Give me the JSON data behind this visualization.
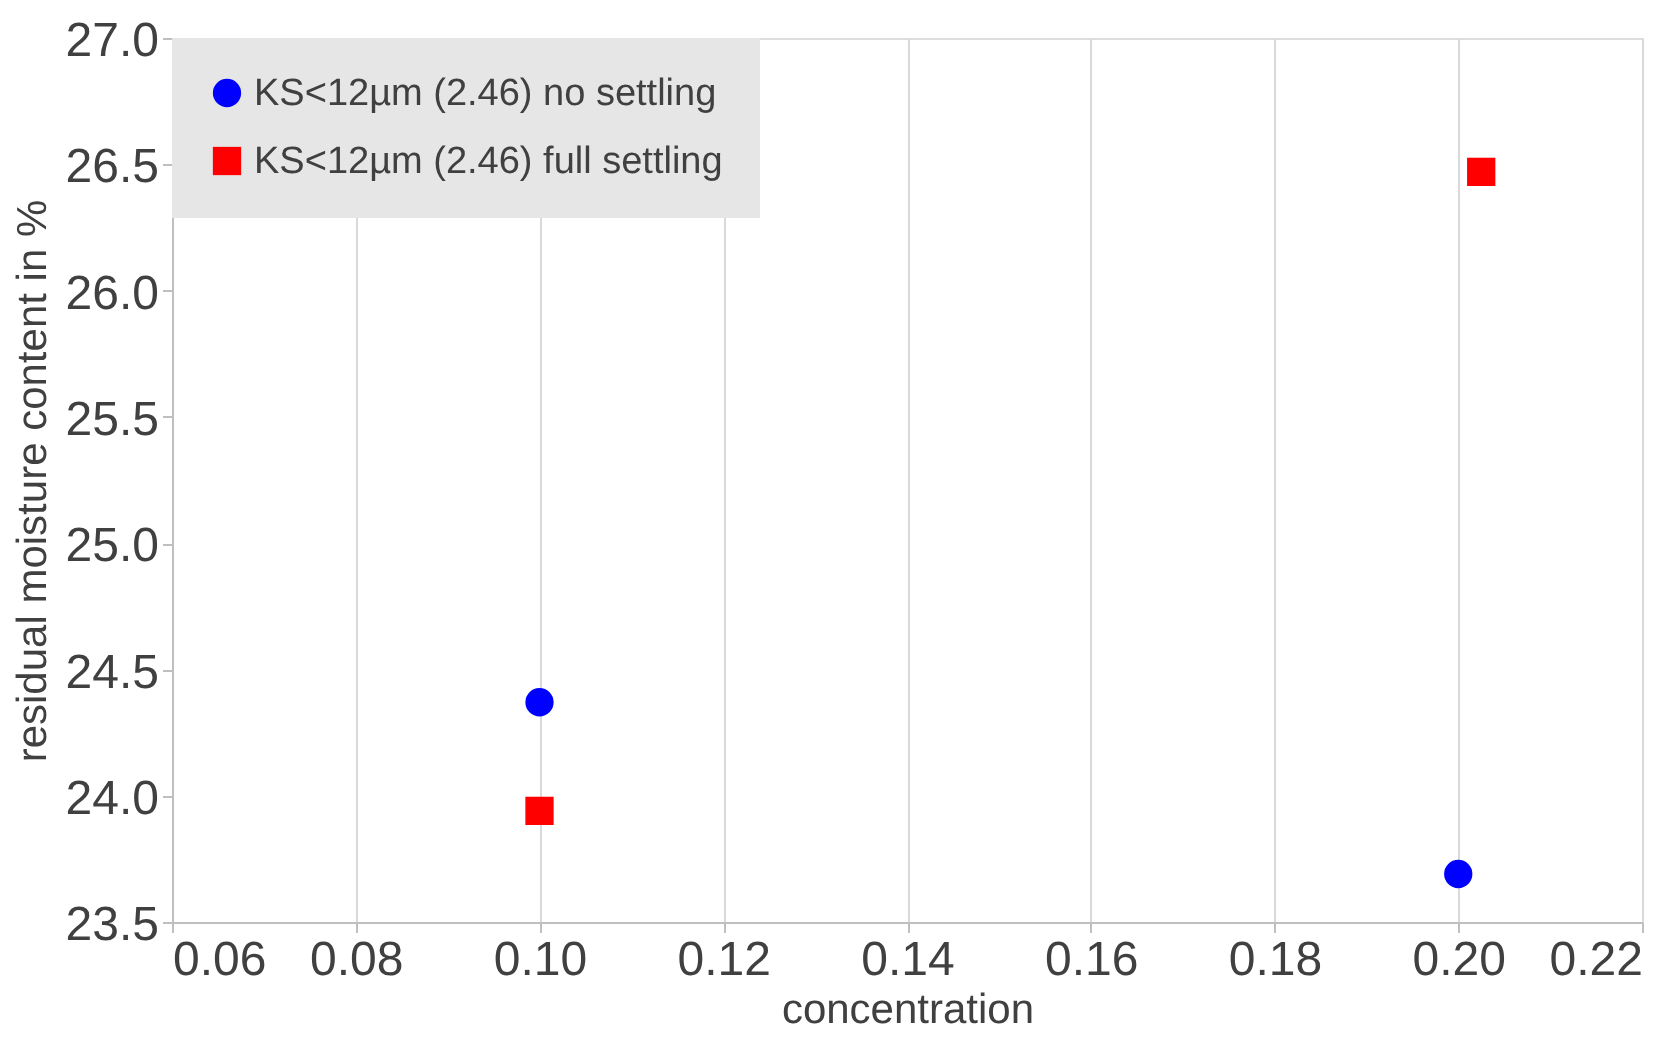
{
  "chart_data": {
    "type": "scatter",
    "xlabel": "concentration",
    "ylabel": "residual moisture content in %",
    "xlim": [
      0.06,
      0.22
    ],
    "xticks": [
      {
        "value": 0.06,
        "label": "0.06"
      },
      {
        "value": 0.08,
        "label": "0.08"
      },
      {
        "value": 0.1,
        "label": "0.10"
      },
      {
        "value": 0.12,
        "label": "0.12"
      },
      {
        "value": 0.14,
        "label": "0.14"
      },
      {
        "value": 0.16,
        "label": "0.16"
      },
      {
        "value": 0.18,
        "label": "0.18"
      },
      {
        "value": 0.2,
        "label": "0.20"
      },
      {
        "value": 0.22,
        "label": "0.22"
      }
    ],
    "ylim": [
      23.5,
      27.0
    ],
    "yticks": [
      {
        "value": 23.5,
        "label": "23.5"
      },
      {
        "value": 24.0,
        "label": "24.0"
      },
      {
        "value": 24.5,
        "label": "24.5"
      },
      {
        "value": 25.0,
        "label": "25.0"
      },
      {
        "value": 25.5,
        "label": "25.5"
      },
      {
        "value": 26.0,
        "label": "26.0"
      },
      {
        "value": 26.5,
        "label": "26.5"
      },
      {
        "value": 27.0,
        "label": "27.0"
      }
    ],
    "grid": "x",
    "legend": "top left",
    "series": [
      {
        "name": "KS<12µm (2.46) no settling",
        "color": "#0000ff",
        "marker": "circle",
        "x": [
          0.1,
          0.2
        ],
        "values": [
          24.37,
          23.69
        ]
      },
      {
        "name": "KS<12µm (2.46) full settling",
        "color": "#ff0000",
        "marker": "square",
        "x": [
          0.1,
          0.2025
        ],
        "values": [
          23.94,
          26.47
        ]
      }
    ]
  }
}
